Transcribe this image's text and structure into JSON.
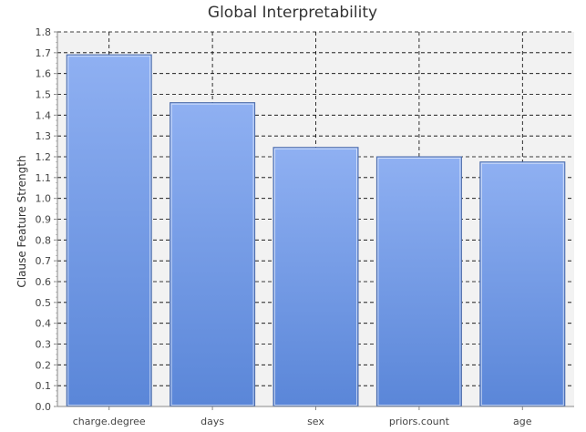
{
  "chart_data": {
    "type": "bar",
    "title": "Global Interpretability",
    "xlabel": "",
    "ylabel": "Clause Feature Strength",
    "categories": [
      "charge.degree",
      "days",
      "sex",
      "priors.count",
      "age"
    ],
    "values": [
      1.69,
      1.46,
      1.245,
      1.2,
      1.175
    ],
    "ylim": [
      0,
      1.8
    ],
    "yticks": [
      "0.0",
      "0.1",
      "0.2",
      "0.3",
      "0.4",
      "0.5",
      "0.6",
      "0.7",
      "0.8",
      "0.9",
      "1.0",
      "1.1",
      "1.2",
      "1.3",
      "1.4",
      "1.5",
      "1.6",
      "1.7",
      "1.8"
    ],
    "grid": true,
    "colors": {
      "bar_top": "#8fb0f2",
      "bar_bottom": "#5a86d8",
      "bar_edge": "#4a6aa8",
      "plot_bg": "#f2f2f2",
      "grid": "#000000"
    }
  }
}
